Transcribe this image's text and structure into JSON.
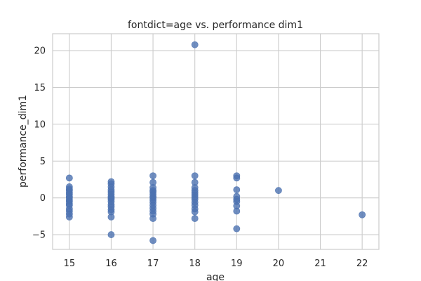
{
  "chart_data": {
    "type": "scatter",
    "title": "fontdict=age vs. performance dim1",
    "xlabel": "age",
    "ylabel": "performance_dim1",
    "xlim": [
      14.6,
      22.4
    ],
    "ylim": [
      -7,
      22.3
    ],
    "xticks": [
      15,
      16,
      17,
      18,
      19,
      20,
      21,
      22
    ],
    "yticks": [
      -5,
      0,
      5,
      10,
      15,
      20
    ],
    "grid": true,
    "marker_color": "#4c72b0",
    "points": [
      {
        "x": 15,
        "y": 2.7
      },
      {
        "x": 15,
        "y": 1.5
      },
      {
        "x": 15,
        "y": 1.2
      },
      {
        "x": 15,
        "y": 1.0
      },
      {
        "x": 15,
        "y": 0.7
      },
      {
        "x": 15,
        "y": 0.5
      },
      {
        "x": 15,
        "y": 0.2
      },
      {
        "x": 15,
        "y": 0.0
      },
      {
        "x": 15,
        "y": -0.3
      },
      {
        "x": 15,
        "y": -0.5
      },
      {
        "x": 15,
        "y": -0.8
      },
      {
        "x": 15,
        "y": -1.0
      },
      {
        "x": 15,
        "y": -1.5
      },
      {
        "x": 15,
        "y": -1.8
      },
      {
        "x": 15,
        "y": -2.2
      },
      {
        "x": 15,
        "y": -2.6
      },
      {
        "x": 16,
        "y": 2.2
      },
      {
        "x": 16,
        "y": 1.9
      },
      {
        "x": 16,
        "y": 1.5
      },
      {
        "x": 16,
        "y": 1.1
      },
      {
        "x": 16,
        "y": 0.8
      },
      {
        "x": 16,
        "y": 0.5
      },
      {
        "x": 16,
        "y": 0.2
      },
      {
        "x": 16,
        "y": 0.0
      },
      {
        "x": 16,
        "y": -0.2
      },
      {
        "x": 16,
        "y": -0.5
      },
      {
        "x": 16,
        "y": -0.9
      },
      {
        "x": 16,
        "y": -1.2
      },
      {
        "x": 16,
        "y": -1.6
      },
      {
        "x": 16,
        "y": -1.9
      },
      {
        "x": 16,
        "y": -2.6
      },
      {
        "x": 16,
        "y": -5.0
      },
      {
        "x": 17,
        "y": 3.0
      },
      {
        "x": 17,
        "y": 2.1
      },
      {
        "x": 17,
        "y": 1.4
      },
      {
        "x": 17,
        "y": 1.0
      },
      {
        "x": 17,
        "y": 0.8
      },
      {
        "x": 17,
        "y": 0.5
      },
      {
        "x": 17,
        "y": 0.2
      },
      {
        "x": 17,
        "y": 0.0
      },
      {
        "x": 17,
        "y": -0.3
      },
      {
        "x": 17,
        "y": -0.6
      },
      {
        "x": 17,
        "y": -1.0
      },
      {
        "x": 17,
        "y": -1.4
      },
      {
        "x": 17,
        "y": -1.8
      },
      {
        "x": 17,
        "y": -2.2
      },
      {
        "x": 17,
        "y": -2.8
      },
      {
        "x": 17,
        "y": -5.8
      },
      {
        "x": 18,
        "y": 20.8
      },
      {
        "x": 18,
        "y": 3.0
      },
      {
        "x": 18,
        "y": 2.1
      },
      {
        "x": 18,
        "y": 1.4
      },
      {
        "x": 18,
        "y": 1.0
      },
      {
        "x": 18,
        "y": 0.7
      },
      {
        "x": 18,
        "y": 0.4
      },
      {
        "x": 18,
        "y": 0.1
      },
      {
        "x": 18,
        "y": -0.2
      },
      {
        "x": 18,
        "y": -0.6
      },
      {
        "x": 18,
        "y": -1.0
      },
      {
        "x": 18,
        "y": -1.5
      },
      {
        "x": 18,
        "y": -1.9
      },
      {
        "x": 18,
        "y": -2.8
      },
      {
        "x": 19,
        "y": 3.0
      },
      {
        "x": 19,
        "y": 2.7
      },
      {
        "x": 19,
        "y": 1.1
      },
      {
        "x": 19,
        "y": 0.2
      },
      {
        "x": 19,
        "y": -0.2
      },
      {
        "x": 19,
        "y": -0.5
      },
      {
        "x": 19,
        "y": -1.1
      },
      {
        "x": 19,
        "y": -1.8
      },
      {
        "x": 19,
        "y": -4.2
      },
      {
        "x": 20,
        "y": 1.0
      },
      {
        "x": 22,
        "y": -2.3
      }
    ]
  }
}
